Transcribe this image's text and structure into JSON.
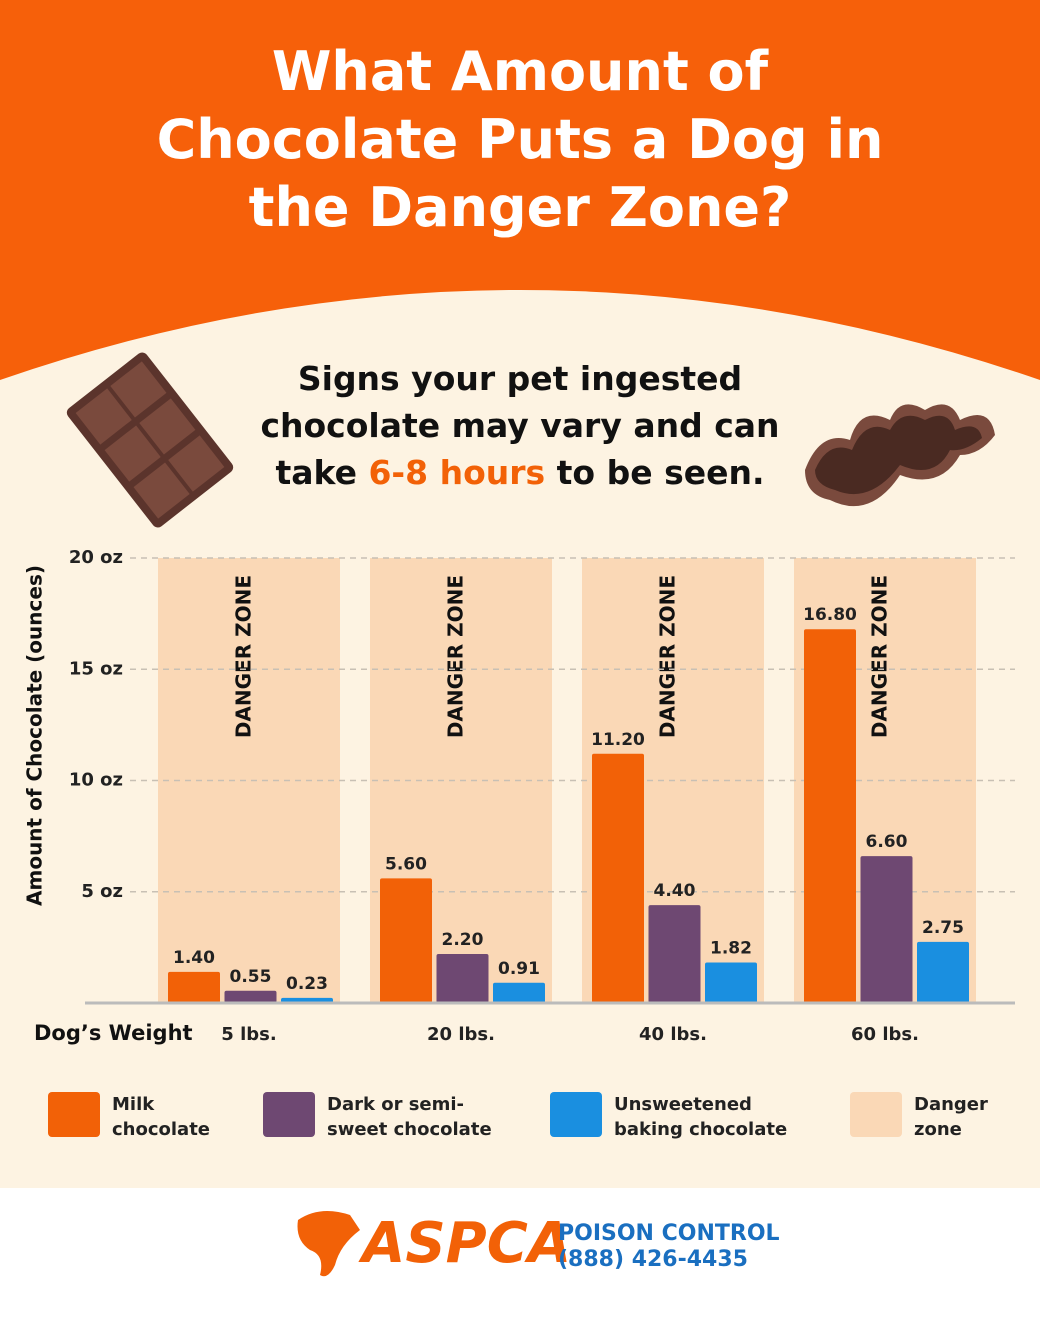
{
  "header": {
    "title": "What Amount of Chocolate Puts a Dog in the Danger Zone?",
    "subtitle_parts": [
      "Signs your pet ingested chocolate may vary and can take",
      "6-8 hours",
      "to be seen."
    ]
  },
  "chart_data": {
    "type": "bar",
    "ylabel": "Amount of Chocolate (ounces)",
    "xlabel": "Dog’s Weight",
    "categories": [
      "5 lbs.",
      "20 lbs.",
      "40 lbs.",
      "60 lbs."
    ],
    "series": [
      {
        "name": "Milk chocolate",
        "color": "#f26107",
        "values": [
          1.4,
          5.6,
          11.2,
          16.8
        ],
        "value_labels": [
          "1.40",
          "5.60",
          "11.20",
          "16.80"
        ]
      },
      {
        "name": "Dark or semi-sweet chocolate",
        "color": "#6e4872",
        "values": [
          0.55,
          2.2,
          4.4,
          6.6
        ],
        "value_labels": [
          "0.55",
          "2.20",
          "4.40",
          "6.60"
        ]
      },
      {
        "name": "Unsweetened baking chocolate",
        "color": "#1a8fe0",
        "values": [
          0.23,
          0.91,
          1.82,
          2.75
        ],
        "value_labels": [
          "0.23",
          "0.91",
          "1.82",
          "2.75"
        ]
      }
    ],
    "danger_zone": {
      "label": "DANGER ZONE",
      "legend": "Danger zone",
      "color": "#fad8b6"
    },
    "ylim": [
      0,
      20
    ],
    "yticks": [
      {
        "value": 5,
        "label": "5 oz"
      },
      {
        "value": 10,
        "label": "10 oz"
      },
      {
        "value": 15,
        "label": "15 oz"
      },
      {
        "value": 20,
        "label": "20 oz"
      }
    ],
    "grid": true
  },
  "footer": {
    "brand": "ASPCA",
    "service": "POISON CONTROL",
    "phone": "(888) 426-4435"
  }
}
